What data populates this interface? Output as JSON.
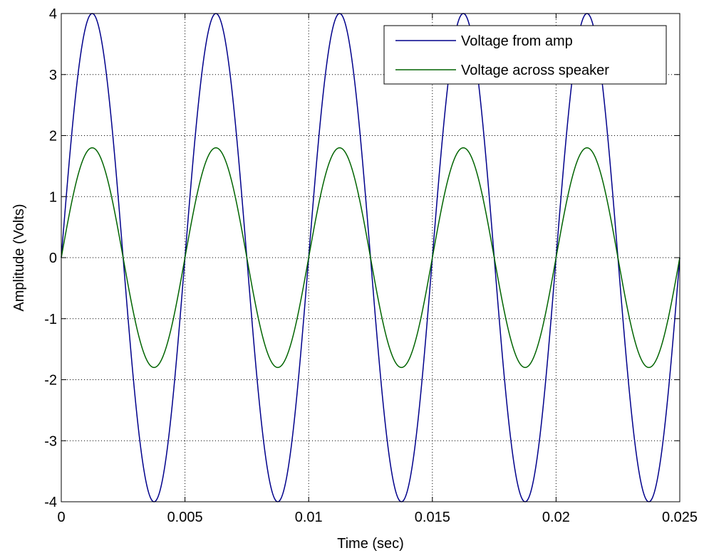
{
  "chart_data": {
    "type": "line",
    "title": "",
    "xlabel": "Time (sec)",
    "ylabel": "Amplitude (Volts)",
    "xlim": [
      0,
      0.025
    ],
    "ylim": [
      -4,
      4
    ],
    "x_ticks": [
      0,
      0.005,
      0.01,
      0.015,
      0.02,
      0.025
    ],
    "x_tick_labels": [
      "0",
      "0.005",
      "0.01",
      "0.015",
      "0.02",
      "0.025"
    ],
    "y_ticks": [
      -4,
      -3,
      -2,
      -1,
      0,
      1,
      2,
      3,
      4
    ],
    "y_tick_labels": [
      "-4",
      "-3",
      "-2",
      "-1",
      "0",
      "1",
      "2",
      "3",
      "4"
    ],
    "grid": true,
    "legend_position": "top-right",
    "series": [
      {
        "name": "Voltage from amp",
        "color": "#00008b",
        "function": "sine",
        "amplitude": 4,
        "frequency_hz": 200,
        "x_start": 0,
        "x_end": 0.025
      },
      {
        "name": "Voltage across speaker",
        "color": "#006400",
        "function": "sine",
        "amplitude": 1.8,
        "frequency_hz": 200,
        "x_start": 0,
        "x_end": 0.025
      }
    ]
  }
}
